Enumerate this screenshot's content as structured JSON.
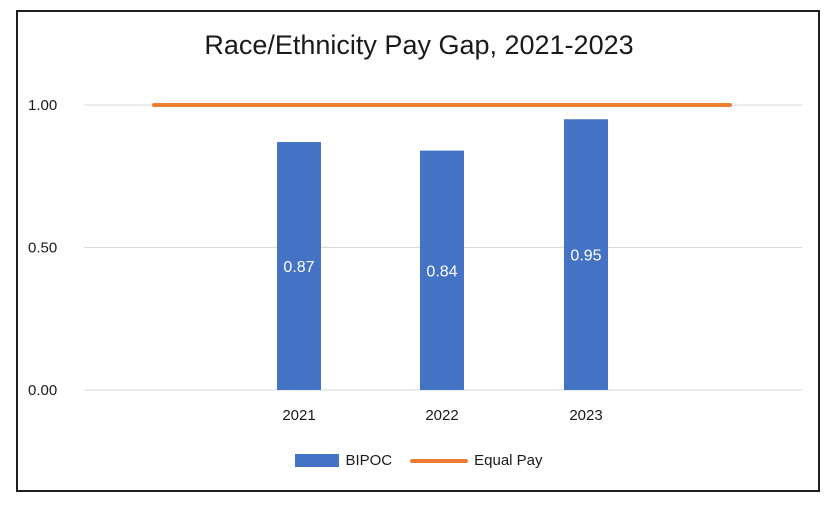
{
  "chart_data": {
    "type": "bar",
    "title": "Race/Ethnicity Pay Gap, 2021-2023",
    "categories": [
      "2021",
      "2022",
      "2023"
    ],
    "series": [
      {
        "name": "BIPOC",
        "values": [
          0.87,
          0.84,
          0.95
        ],
        "data_labels": [
          "0.87",
          "0.84",
          "0.95"
        ],
        "color": "#4472C4"
      },
      {
        "name": "Equal Pay",
        "values": [
          1.0,
          1.0,
          1.0
        ],
        "kind": "line",
        "color": "#ED7D31"
      }
    ],
    "yticks": [
      "0.00",
      "0.50",
      "1.00"
    ],
    "ylim": [
      0,
      1
    ],
    "grid": true,
    "legend_position": "bottom"
  }
}
